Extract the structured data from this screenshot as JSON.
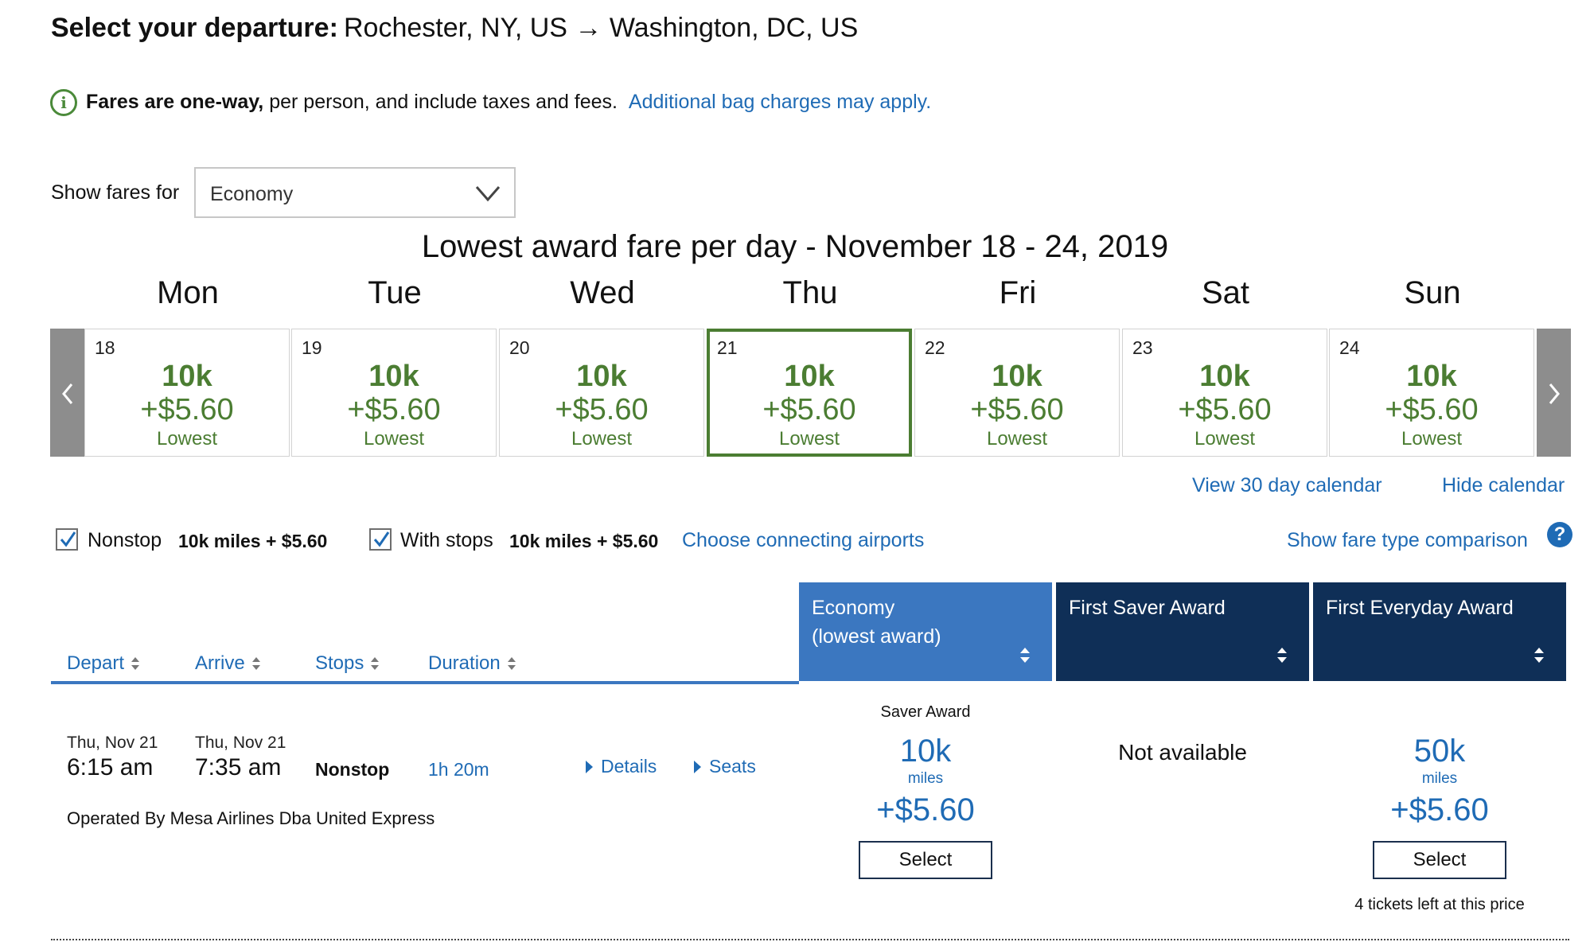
{
  "header": {
    "title": "Select your departure:",
    "route": "Rochester, NY, US → Washington, DC, US"
  },
  "info": {
    "bold_text": "Fares are one-way,",
    "text": " per person, and include taxes and fees.",
    "link": "Additional bag charges may apply."
  },
  "fare_filter": {
    "label": "Show fares for",
    "selected": "Economy"
  },
  "calendar": {
    "title": "Lowest award fare per day - November 18 - 24, 2019",
    "selected_day": "21",
    "days": [
      {
        "name": "Mon",
        "date": "18",
        "miles": "10k",
        "price": "+$5.60",
        "note": "Lowest"
      },
      {
        "name": "Tue",
        "date": "19",
        "miles": "10k",
        "price": "+$5.60",
        "note": "Lowest"
      },
      {
        "name": "Wed",
        "date": "20",
        "miles": "10k",
        "price": "+$5.60",
        "note": "Lowest"
      },
      {
        "name": "Thu",
        "date": "21",
        "miles": "10k",
        "price": "+$5.60",
        "note": "Lowest"
      },
      {
        "name": "Fri",
        "date": "22",
        "miles": "10k",
        "price": "+$5.60",
        "note": "Lowest"
      },
      {
        "name": "Sat",
        "date": "23",
        "miles": "10k",
        "price": "+$5.60",
        "note": "Lowest"
      },
      {
        "name": "Sun",
        "date": "24",
        "miles": "10k",
        "price": "+$5.60",
        "note": "Lowest"
      }
    ],
    "view_30_day": "View 30 day calendar",
    "hide": "Hide calendar"
  },
  "filters": {
    "nonstop_label": "Nonstop",
    "nonstop_price": "10k miles + $5.60",
    "nonstop_checked": true,
    "stops_label": "With stops",
    "stops_price": "10k miles + $5.60",
    "stops_checked": true,
    "connecting_link": "Choose connecting airports",
    "comparison_link": "Show fare type comparison"
  },
  "columns": {
    "depart": "Depart",
    "arrive": "Arrive",
    "stops": "Stops",
    "duration": "Duration"
  },
  "fare_columns": [
    {
      "line1": "Economy",
      "line2": "(lowest award)",
      "color": "#3b77c0"
    },
    {
      "line1": "First Saver Award",
      "line2": "",
      "color": "#0f2f57"
    },
    {
      "line1": "First Everyday Award",
      "line2": "",
      "color": "#0f2f57"
    }
  ],
  "flight": {
    "depart_date": "Thu, Nov 21",
    "depart_time": "6:15 am",
    "arrive_date": "Thu, Nov 21",
    "arrive_time": "7:35 am",
    "stops": "Nonstop",
    "duration": "1h 20m",
    "details": "Details",
    "seats": "Seats",
    "operator": "Operated By Mesa Airlines Dba United Express",
    "fares": {
      "economy": {
        "tag": "Saver Award",
        "miles": "10k",
        "miles_label": "miles",
        "fee": "+$5.60",
        "button": "Select"
      },
      "first_saver": {
        "status": "Not available"
      },
      "first_everyday": {
        "miles": "50k",
        "miles_label": "miles",
        "fee": "+$5.60",
        "button": "Select",
        "note": "4 tickets left at this price"
      }
    }
  }
}
